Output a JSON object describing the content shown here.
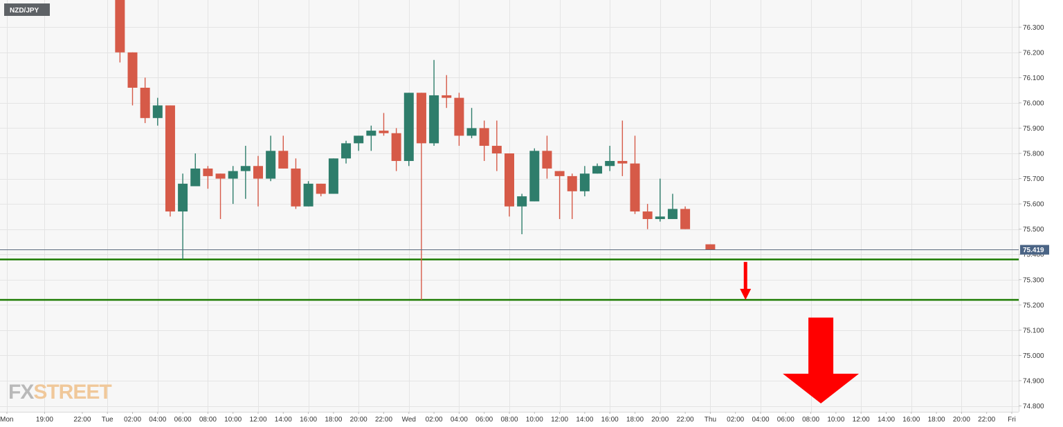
{
  "symbol": "NZD/JPY",
  "watermark": {
    "part1": "FX",
    "part2": "STREET"
  },
  "current_price": "75.419",
  "colors": {
    "up": "#2e7d6b",
    "down": "#d65a48",
    "support": "#1a7a00",
    "arrow": "#ff0000",
    "background": "#f7f7f7",
    "grid": "#e4e4e4"
  },
  "chart_data": {
    "type": "candlestick",
    "title": "",
    "xlabel": "",
    "ylabel": "",
    "x_unit": "hours since Mon 00:00",
    "ylim": [
      74.78,
      76.38
    ],
    "y_ticks": [
      "74.800",
      "74.900",
      "75.000",
      "75.100",
      "75.200",
      "75.300",
      "75.400",
      "75.500",
      "75.600",
      "75.700",
      "75.800",
      "75.900",
      "76.000",
      "76.100",
      "76.200",
      "76.300"
    ],
    "x_ticks": [
      {
        "t": 16,
        "label": "Mon"
      },
      {
        "t": 19,
        "label": "19:00"
      },
      {
        "t": 22,
        "label": "22:00"
      },
      {
        "t": 24,
        "label": "Tue"
      },
      {
        "t": 26,
        "label": "02:00"
      },
      {
        "t": 28,
        "label": "04:00"
      },
      {
        "t": 30,
        "label": "06:00"
      },
      {
        "t": 32,
        "label": "08:00"
      },
      {
        "t": 34,
        "label": "10:00"
      },
      {
        "t": 36,
        "label": "12:00"
      },
      {
        "t": 38,
        "label": "14:00"
      },
      {
        "t": 40,
        "label": "16:00"
      },
      {
        "t": 42,
        "label": "18:00"
      },
      {
        "t": 44,
        "label": "20:00"
      },
      {
        "t": 46,
        "label": "22:00"
      },
      {
        "t": 48,
        "label": "Wed"
      },
      {
        "t": 50,
        "label": "02:00"
      },
      {
        "t": 52,
        "label": "04:00"
      },
      {
        "t": 54,
        "label": "06:00"
      },
      {
        "t": 56,
        "label": "08:00"
      },
      {
        "t": 58,
        "label": "10:00"
      },
      {
        "t": 60,
        "label": "12:00"
      },
      {
        "t": 62,
        "label": "14:00"
      },
      {
        "t": 64,
        "label": "16:00"
      },
      {
        "t": 66,
        "label": "18:00"
      },
      {
        "t": 68,
        "label": "20:00"
      },
      {
        "t": 70,
        "label": "22:00"
      },
      {
        "t": 72,
        "label": "Thu"
      },
      {
        "t": 74,
        "label": "02:00"
      },
      {
        "t": 76,
        "label": "04:00"
      },
      {
        "t": 78,
        "label": "06:00"
      },
      {
        "t": 80,
        "label": "08:00"
      },
      {
        "t": 82,
        "label": "10:00"
      },
      {
        "t": 84,
        "label": "12:00"
      },
      {
        "t": 86,
        "label": "14:00"
      },
      {
        "t": 88,
        "label": "16:00"
      },
      {
        "t": 90,
        "label": "18:00"
      },
      {
        "t": 92,
        "label": "20:00"
      },
      {
        "t": 94,
        "label": "22:00"
      },
      {
        "t": 96,
        "label": "Fri"
      }
    ],
    "candles": [
      {
        "t": 25,
        "o": 76.42,
        "h": 76.42,
        "l": 76.16,
        "c": 76.2
      },
      {
        "t": 26,
        "o": 76.2,
        "h": 76.2,
        "l": 75.99,
        "c": 76.06
      },
      {
        "t": 27,
        "o": 76.06,
        "h": 76.1,
        "l": 75.92,
        "c": 75.94
      },
      {
        "t": 28,
        "o": 75.94,
        "h": 76.02,
        "l": 75.91,
        "c": 75.99
      },
      {
        "t": 29,
        "o": 75.99,
        "h": 75.99,
        "l": 75.55,
        "c": 75.57
      },
      {
        "t": 30,
        "o": 75.57,
        "h": 75.72,
        "l": 75.38,
        "c": 75.68
      },
      {
        "t": 31,
        "o": 75.67,
        "h": 75.8,
        "l": 75.67,
        "c": 75.74
      },
      {
        "t": 32,
        "o": 75.74,
        "h": 75.75,
        "l": 75.66,
        "c": 75.71
      },
      {
        "t": 33,
        "o": 75.72,
        "h": 75.72,
        "l": 75.54,
        "c": 75.7
      },
      {
        "t": 34,
        "o": 75.7,
        "h": 75.75,
        "l": 75.6,
        "c": 75.73
      },
      {
        "t": 35,
        "o": 75.73,
        "h": 75.83,
        "l": 75.62,
        "c": 75.75
      },
      {
        "t": 36,
        "o": 75.75,
        "h": 75.79,
        "l": 75.59,
        "c": 75.7
      },
      {
        "t": 37,
        "o": 75.7,
        "h": 75.87,
        "l": 75.69,
        "c": 75.81
      },
      {
        "t": 38,
        "o": 75.81,
        "h": 75.87,
        "l": 75.74,
        "c": 75.74
      },
      {
        "t": 39,
        "o": 75.74,
        "h": 75.78,
        "l": 75.58,
        "c": 75.59
      },
      {
        "t": 40,
        "o": 75.59,
        "h": 75.69,
        "l": 75.59,
        "c": 75.68
      },
      {
        "t": 41,
        "o": 75.68,
        "h": 75.68,
        "l": 75.63,
        "c": 75.64
      },
      {
        "t": 42,
        "o": 75.64,
        "h": 75.78,
        "l": 75.64,
        "c": 75.78
      },
      {
        "t": 43,
        "o": 75.78,
        "h": 75.85,
        "l": 75.76,
        "c": 75.84
      },
      {
        "t": 44,
        "o": 75.84,
        "h": 75.87,
        "l": 75.81,
        "c": 75.87
      },
      {
        "t": 45,
        "o": 75.87,
        "h": 75.91,
        "l": 75.81,
        "c": 75.89
      },
      {
        "t": 46,
        "o": 75.89,
        "h": 75.96,
        "l": 75.87,
        "c": 75.88
      },
      {
        "t": 47,
        "o": 75.88,
        "h": 75.9,
        "l": 75.73,
        "c": 75.77
      },
      {
        "t": 48,
        "o": 75.77,
        "h": 76.04,
        "l": 75.75,
        "c": 76.04
      },
      {
        "t": 49,
        "o": 76.04,
        "h": 76.04,
        "l": 75.22,
        "c": 75.84
      },
      {
        "t": 50,
        "o": 75.84,
        "h": 76.17,
        "l": 75.83,
        "c": 76.03
      },
      {
        "t": 51,
        "o": 76.03,
        "h": 76.11,
        "l": 75.98,
        "c": 76.02
      },
      {
        "t": 52,
        "o": 76.02,
        "h": 76.04,
        "l": 75.83,
        "c": 75.87
      },
      {
        "t": 53,
        "o": 75.87,
        "h": 75.98,
        "l": 75.86,
        "c": 75.9
      },
      {
        "t": 54,
        "o": 75.9,
        "h": 75.93,
        "l": 75.77,
        "c": 75.83
      },
      {
        "t": 55,
        "o": 75.83,
        "h": 75.93,
        "l": 75.73,
        "c": 75.8
      },
      {
        "t": 56,
        "o": 75.8,
        "h": 75.8,
        "l": 75.55,
        "c": 75.59
      },
      {
        "t": 57,
        "o": 75.59,
        "h": 75.64,
        "l": 75.48,
        "c": 75.63
      },
      {
        "t": 58,
        "o": 75.61,
        "h": 75.82,
        "l": 75.61,
        "c": 75.81
      },
      {
        "t": 59,
        "o": 75.81,
        "h": 75.87,
        "l": 75.7,
        "c": 75.74
      },
      {
        "t": 60,
        "o": 75.73,
        "h": 75.73,
        "l": 75.54,
        "c": 75.71
      },
      {
        "t": 61,
        "o": 75.71,
        "h": 75.72,
        "l": 75.54,
        "c": 75.65
      },
      {
        "t": 62,
        "o": 75.65,
        "h": 75.75,
        "l": 75.63,
        "c": 75.72
      },
      {
        "t": 63,
        "o": 75.72,
        "h": 75.76,
        "l": 75.72,
        "c": 75.75
      },
      {
        "t": 64,
        "o": 75.75,
        "h": 75.83,
        "l": 75.73,
        "c": 75.77
      },
      {
        "t": 65,
        "o": 75.77,
        "h": 75.93,
        "l": 75.71,
        "c": 75.76
      },
      {
        "t": 66,
        "o": 75.76,
        "h": 75.87,
        "l": 75.56,
        "c": 75.57
      },
      {
        "t": 67,
        "o": 75.57,
        "h": 75.6,
        "l": 75.5,
        "c": 75.54
      },
      {
        "t": 68,
        "o": 75.54,
        "h": 75.7,
        "l": 75.53,
        "c": 75.55
      },
      {
        "t": 69,
        "o": 75.54,
        "h": 75.64,
        "l": 75.54,
        "c": 75.58
      },
      {
        "t": 70,
        "o": 75.58,
        "h": 75.59,
        "l": 75.5,
        "c": 75.5
      },
      {
        "t": 72,
        "o": 75.44,
        "h": 75.44,
        "l": 75.419,
        "c": 75.419
      }
    ],
    "support_levels": [
      75.38,
      75.22
    ],
    "arrows": [
      {
        "kind": "small",
        "t": 74.8,
        "from": 75.37,
        "to": 75.22
      },
      {
        "kind": "large",
        "t": 80.8,
        "from": 75.15,
        "to": 74.81
      }
    ]
  }
}
